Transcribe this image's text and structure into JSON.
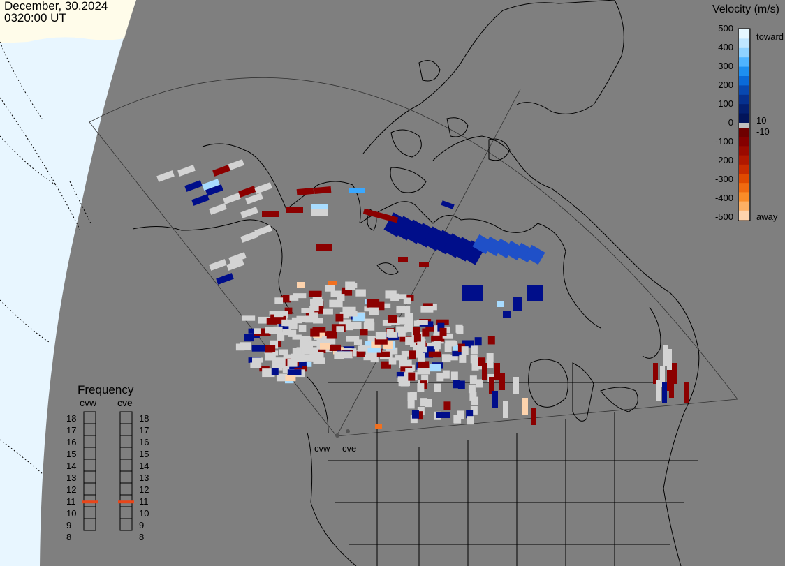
{
  "header": {
    "date": "December, 30.2024",
    "time": "0320:00 UT"
  },
  "velocity_scale": {
    "title": "Velocity (m/s)",
    "ticks": [
      "500",
      "400",
      "300",
      "200",
      "100",
      "0",
      "-100",
      "-200",
      "-300",
      "-400",
      "-500"
    ],
    "inner_labels": {
      "toward": "toward",
      "pos_limit": "10",
      "neg_limit": "-10",
      "away": "away"
    },
    "colors_toward": [
      "#e6f7ff",
      "#bfe6ff",
      "#8fd2ff",
      "#4fb4ff",
      "#1d8ff0",
      "#0a6ad8",
      "#0848b0",
      "#06308e",
      "#041f70",
      "#02145a"
    ],
    "colors_away": [
      "#6e0000",
      "#850000",
      "#9a0a00",
      "#b01800",
      "#c82c00",
      "#e04a00",
      "#f06a10",
      "#fa8c28",
      "#fdb064",
      "#fdd3ad"
    ]
  },
  "frequency": {
    "title": "Frequency",
    "radars": [
      "cvw",
      "cve"
    ],
    "scale": [
      "18",
      "17",
      "16",
      "15",
      "14",
      "13",
      "12",
      "11",
      "10",
      "9",
      "8"
    ],
    "cvw_mhz": 10.9,
    "cve_mhz": 10.9,
    "marker_color": "#e8461a"
  },
  "map_labels": {
    "cvw": "cvw",
    "cve": "cve"
  },
  "colors": {
    "globe": "#7f7f7f",
    "space": "#e8f6ff",
    "land_top": "#fffcea",
    "grey_scatter": "#d3d3d3"
  }
}
